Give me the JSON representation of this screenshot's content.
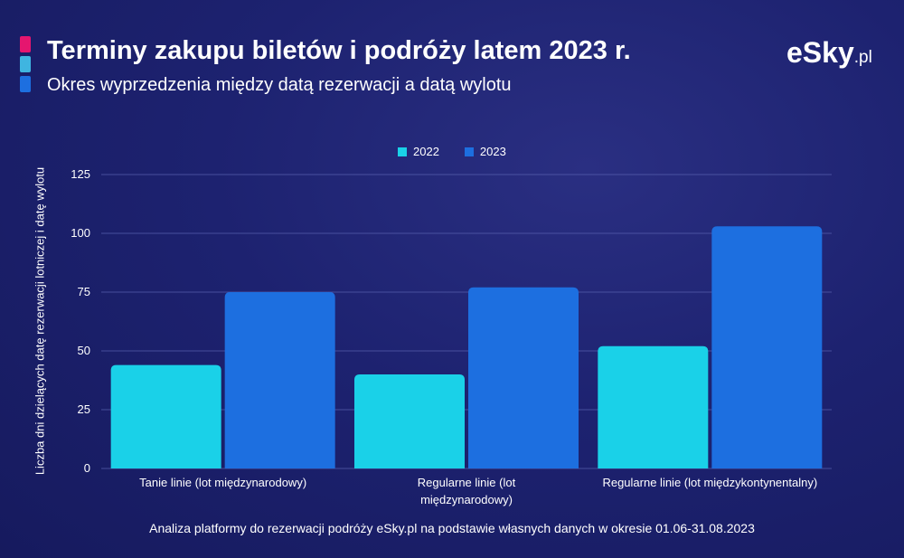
{
  "header": {
    "title": "Terminy zakupu biletów i podróży latem 2023 r.",
    "subtitle": "Okres wyprzedzenia między datą rezerwacji a datą wylotu",
    "accent_colors": [
      "#e5166f",
      "#3fb5e0",
      "#1d6fe0"
    ]
  },
  "logo": {
    "main": "eSky",
    "suffix": ".pl"
  },
  "footer": {
    "note": "Analiza platformy do rezerwacji podróży eSky.pl na podstawie własnych danych w okresie 01.06-31.08.2023"
  },
  "chart_data": {
    "type": "bar",
    "title": "",
    "xlabel": "",
    "ylabel": "Liczba dni dzielących datę rezerwacji lotniczej i datę wylotu",
    "categories": [
      [
        "Tanie linie (lot międzynarodowy)"
      ],
      [
        "Regularne linie (lot",
        "międzynarodowy)"
      ],
      [
        "Regularne linie (lot międzykontynentalny)"
      ]
    ],
    "series": [
      {
        "name": "2022",
        "color": "#1ad1e8",
        "values": [
          44,
          40,
          52
        ]
      },
      {
        "name": "2023",
        "color": "#1d6fe0",
        "values": [
          75,
          77,
          103
        ]
      }
    ],
    "ylim": [
      0,
      125
    ],
    "yticks": [
      0,
      25,
      50,
      75,
      100,
      125
    ],
    "grid": true,
    "legend": "top-center"
  }
}
